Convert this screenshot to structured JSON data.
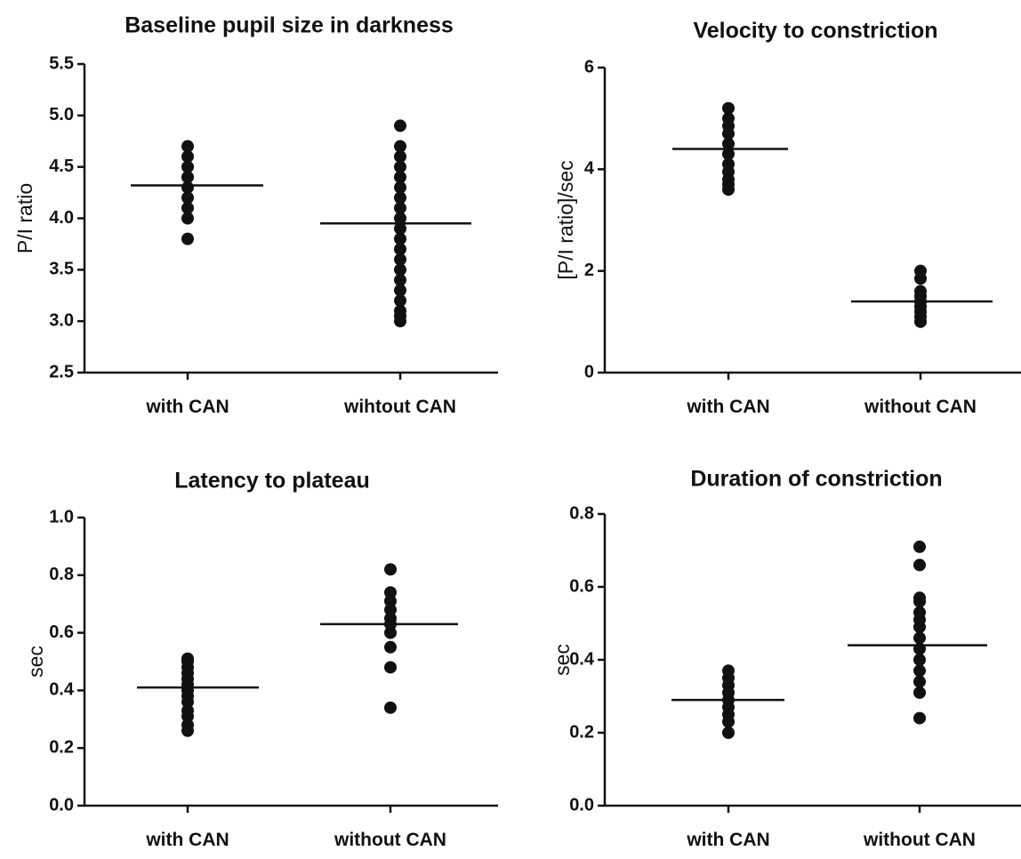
{
  "chart_data": [
    {
      "type": "scatter",
      "title": "Baseline pupil size in darkness",
      "ylabel": "P/I ratio",
      "xlabel": "",
      "categories": [
        "with CAN",
        "wihtout CAN"
      ],
      "ylim": [
        2.5,
        5.5
      ],
      "yticks": [
        "2.5",
        "3.0",
        "3.5",
        "4.0",
        "4.5",
        "5.0",
        "5.5"
      ],
      "groups": [
        {
          "values": [
            3.8,
            4.0,
            4.1,
            4.2,
            4.3,
            4.4,
            4.5,
            4.6,
            4.7
          ],
          "mean": 4.32
        },
        {
          "values": [
            3.0,
            3.05,
            3.1,
            3.2,
            3.3,
            3.4,
            3.5,
            3.6,
            3.7,
            3.8,
            3.9,
            4.0,
            4.1,
            4.2,
            4.3,
            4.4,
            4.5,
            4.6,
            4.7,
            4.9
          ],
          "mean": 3.95
        }
      ],
      "grid": false,
      "legend": "none"
    },
    {
      "type": "scatter",
      "title": "Velocity to constriction",
      "ylabel": "[P/I ratio]/sec",
      "xlabel": "",
      "categories": [
        "with CAN",
        "without CAN"
      ],
      "ylim": [
        0,
        6
      ],
      "yticks": [
        "0",
        "2",
        "4",
        "6"
      ],
      "groups": [
        {
          "values": [
            3.6,
            3.7,
            3.8,
            3.95,
            4.1,
            4.3,
            4.5,
            4.7,
            4.85,
            5.0,
            5.2
          ],
          "mean": 4.4
        },
        {
          "values": [
            1.0,
            1.1,
            1.2,
            1.3,
            1.4,
            1.5,
            1.6,
            1.85,
            2.0
          ],
          "mean": 1.4
        }
      ],
      "grid": false,
      "legend": "none"
    },
    {
      "type": "scatter",
      "title": "Latency to plateau",
      "ylabel": "sec",
      "xlabel": "",
      "categories": [
        "with CAN",
        "without CAN"
      ],
      "ylim": [
        0.0,
        1.0
      ],
      "yticks": [
        "0.0",
        "0.2",
        "0.4",
        "0.6",
        "0.8",
        "1.0"
      ],
      "groups": [
        {
          "values": [
            0.26,
            0.28,
            0.31,
            0.33,
            0.36,
            0.38,
            0.4,
            0.42,
            0.44,
            0.46,
            0.48,
            0.5,
            0.51
          ],
          "mean": 0.41
        },
        {
          "values": [
            0.34,
            0.48,
            0.55,
            0.6,
            0.63,
            0.65,
            0.68,
            0.71,
            0.74,
            0.82
          ],
          "mean": 0.63
        }
      ],
      "grid": false,
      "legend": "none"
    },
    {
      "type": "scatter",
      "title": "Duration of constriction",
      "ylabel": "sec",
      "xlabel": "",
      "categories": [
        "with CAN",
        "without CAN"
      ],
      "ylim": [
        0.0,
        0.8
      ],
      "yticks": [
        "0.0",
        "0.2",
        "0.4",
        "0.6",
        "0.8"
      ],
      "groups": [
        {
          "values": [
            0.2,
            0.23,
            0.25,
            0.27,
            0.29,
            0.31,
            0.33,
            0.35,
            0.37
          ],
          "mean": 0.29
        },
        {
          "values": [
            0.24,
            0.31,
            0.34,
            0.37,
            0.4,
            0.43,
            0.46,
            0.49,
            0.51,
            0.53,
            0.56,
            0.57,
            0.66,
            0.71
          ],
          "mean": 0.44
        }
      ],
      "grid": false,
      "legend": "none"
    }
  ]
}
